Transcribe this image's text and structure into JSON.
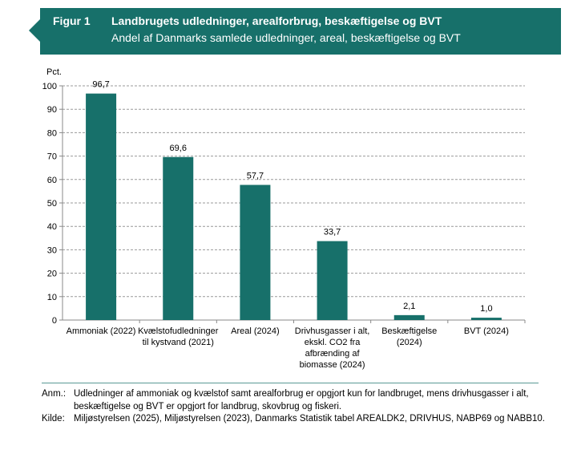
{
  "header": {
    "figure_label": "Figur 1",
    "title": "Landbrugets udledninger, arealforbrug, beskæftigelse og BVT",
    "subtitle": "Andel af Danmarks samlede udledninger, areal, beskæftigelse og BVT"
  },
  "chart_data": {
    "type": "bar",
    "title": "Landbrugets udledninger, arealforbrug, beskæftigelse og BVT",
    "subtitle": "Andel af Danmarks samlede udledninger, areal, beskæftigelse og BVT",
    "ylabel": "Pct.",
    "ylim": [
      0,
      100
    ],
    "yticks": [
      0,
      10,
      20,
      30,
      40,
      50,
      60,
      70,
      80,
      90,
      100
    ],
    "grid": true,
    "categories": [
      [
        "Ammoniak (2022)"
      ],
      [
        "Kvælstofudledninger",
        "til kystvand (2021)"
      ],
      [
        "Areal (2024)"
      ],
      [
        "Drivhusgasser i alt,",
        "ekskl. CO2 fra",
        "afbrænding af",
        "biomasse (2024)"
      ],
      [
        "Beskæftigelse",
        "(2024)"
      ],
      [
        "BVT (2024)"
      ]
    ],
    "values": [
      96.7,
      69.6,
      57.7,
      33.7,
      2.1,
      1.0
    ],
    "data_labels": [
      "96,7",
      "69,6",
      "57,7",
      "33,7",
      "2,1",
      "1,0"
    ],
    "bar_color": "#17706a"
  },
  "footer": {
    "note_label": "Anm.:",
    "note_lines": [
      "Udledninger af ammoniak og kvælstof samt arealforbrug er opgjort kun for landbruget, mens drivhusgasser i alt,",
      "beskæftigelse og BVT er opgjort for landbrug, skovbrug og fiskeri."
    ],
    "source_label": "Kilde:",
    "source": "Miljøstyrelsen (2025), Miljøstyrelsen (2023), Danmarks Statistik tabel AREALDK2, DRIVHUS, NABP69 og NABB10."
  }
}
